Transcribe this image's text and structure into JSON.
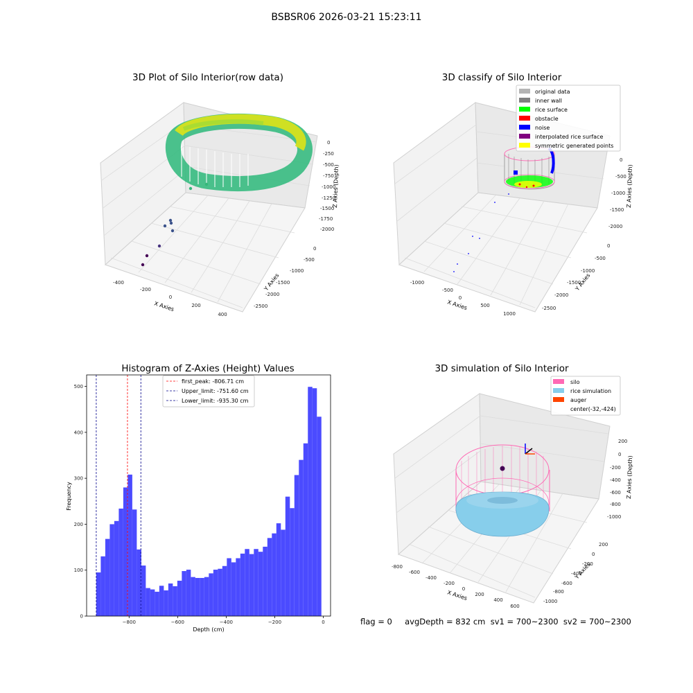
{
  "figure": {
    "title": "BSBSR06 2026-03-21 15:23:11"
  },
  "colors": {
    "original_data": "#b4b4b4",
    "inner_wall": "#808080",
    "rice_surface": "#00ff00",
    "obstacle": "#ff0000",
    "noise": "#0000ff",
    "interpolated_rice_surface": "#800080",
    "symmetric_generated_points": "#ffff00",
    "silo": "#ff69b4",
    "rice_simulation": "#87ceeb",
    "auger": "#ff4500",
    "hist_bar": "#4b4bff"
  },
  "panels": {
    "raw": {
      "title": "3D Plot of Silo Interior(row data)",
      "xlabel": "X Axies",
      "ylabel": "Y Axies",
      "zlabel": "Z Axies (Depth)",
      "xticks": [
        "-400",
        "-200",
        "0",
        "200",
        "400"
      ],
      "yticks": [
        "0",
        "-500",
        "-1000",
        "-1500",
        "-2000",
        "-2500"
      ],
      "zticks": [
        "0",
        "-250",
        "-500",
        "-750",
        "-1000",
        "-1250",
        "-1500",
        "-1750",
        "-2000"
      ]
    },
    "classify": {
      "title": "3D classify of Silo Interior",
      "xlabel": "X Axies",
      "ylabel": "Y Axies",
      "zlabel": "Z Axies (Depth)",
      "xticks": [
        "-1000",
        "-500",
        "0",
        "500",
        "1000"
      ],
      "yticks": [
        "0",
        "-500",
        "-1000",
        "-1500",
        "-2000",
        "-2500"
      ],
      "zticks": [
        "0",
        "-500",
        "-1000",
        "-1500",
        "-2000"
      ],
      "legend": [
        {
          "label": "original data",
          "color": "#b4b4b4"
        },
        {
          "label": "inner wall",
          "color": "#808080"
        },
        {
          "label": "rice surface",
          "color": "#00ff00"
        },
        {
          "label": "obstacle",
          "color": "#ff0000"
        },
        {
          "label": "noise",
          "color": "#0000ff"
        },
        {
          "label": "interpolated rice surface",
          "color": "#800080"
        },
        {
          "label": "symmetric generated points",
          "color": "#ffff00"
        }
      ]
    },
    "simulation": {
      "title": "3D simulation of Silo Interior",
      "xlabel": "X Axies",
      "ylabel": "Y Axies",
      "zlabel": "Z Axies (Depth)",
      "xticks": [
        "-800",
        "-600",
        "-400",
        "-200",
        "0",
        "200",
        "400",
        "600"
      ],
      "yticks": [
        "200",
        "0",
        "-200",
        "-400",
        "-600",
        "-800",
        "-1000"
      ],
      "zticks": [
        "200",
        "0",
        "-200",
        "-400",
        "-600",
        "-800",
        "-1000"
      ],
      "legend": [
        {
          "label": "silo",
          "color": "#ff69b4"
        },
        {
          "label": "rice simulation",
          "color": "#87ceeb"
        },
        {
          "label": "auger",
          "color": "#ff4500"
        },
        {
          "label": "center(-32,-424)",
          "color": ""
        }
      ]
    }
  },
  "chart_data": [
    {
      "type": "bar",
      "title": "Histogram of Z-Axies (Height) Values",
      "xlabel": "Depth (cm)",
      "ylabel": "Frequency",
      "xlim": [
        -975,
        30
      ],
      "ylim": [
        0,
        525
      ],
      "xticks": [
        -800,
        -600,
        -400,
        -200,
        0
      ],
      "yticks": [
        0,
        100,
        200,
        300,
        400,
        500
      ],
      "bin_start": -935.3,
      "bin_width": 18.55,
      "values": [
        95,
        130,
        168,
        200,
        207,
        234,
        280,
        308,
        232,
        145,
        110,
        61,
        58,
        53,
        66,
        56,
        71,
        65,
        77,
        98,
        101,
        85,
        83,
        83,
        85,
        93,
        101,
        103,
        109,
        126,
        117,
        126,
        136,
        146,
        135,
        146,
        140,
        151,
        170,
        180,
        202,
        188,
        260,
        235,
        307,
        340,
        376,
        499,
        496,
        434
      ],
      "lines": [
        {
          "label": "first_peak: -806.71 cm",
          "x": -806.71,
          "color": "#ff0000"
        },
        {
          "label": "Upper_limit: -751.60 cm",
          "x": -751.6,
          "color": "#00008b"
        },
        {
          "label": "Lower_limit: -935.30 cm",
          "x": -935.3,
          "color": "#00008b"
        }
      ]
    }
  ],
  "status": {
    "text": "flag = 0     avgDepth = 832 cm  sv1 = 700~2300  sv2 = 700~2300"
  }
}
